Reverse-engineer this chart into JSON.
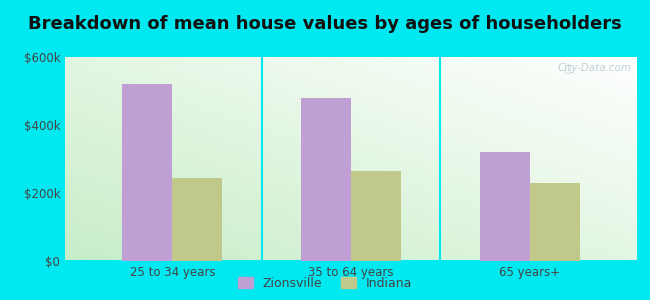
{
  "title": "Breakdown of mean house values by ages of householders",
  "categories": [
    "25 to 34 years",
    "35 to 64 years",
    "65 years+"
  ],
  "series": {
    "Zionsville": [
      520000,
      480000,
      320000
    ],
    "Indiana": [
      245000,
      265000,
      230000
    ]
  },
  "bar_colors": {
    "Zionsville": "#bf9fd4",
    "Indiana": "#c0c98a"
  },
  "ylim": [
    0,
    600000
  ],
  "yticks": [
    0,
    200000,
    400000,
    600000
  ],
  "ytick_labels": [
    "$0",
    "$200k",
    "$400k",
    "$600k"
  ],
  "background_color_outer": "#00e8f0",
  "background_color_inner_left": "#c5e8c0",
  "background_color_inner_right": "#f0f8f0",
  "title_fontsize": 13,
  "legend_fontsize": 9,
  "tick_fontsize": 8.5,
  "bar_width": 0.28,
  "watermark": "City-Data.com"
}
